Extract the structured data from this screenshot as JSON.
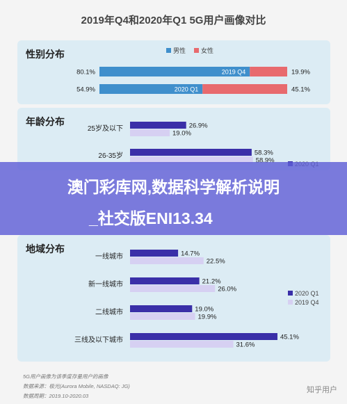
{
  "title": "2019年Q4和2020年Q1 5G用户画像对比",
  "banner": {
    "line1": "澳门彩库网,数据科学解析说明",
    "line2": "_社交版ENI13.34"
  },
  "footer": {
    "line1": "5G用户画像为该季度存量用户的画像",
    "line2": "数据来源：极光(Aurora Mobile, NASDAQ: JG)",
    "line3": "数据周期：2019.10-2020.03"
  },
  "watermark": "知乎用户",
  "colors": {
    "male": "#3f8fcc",
    "female": "#e86a6e",
    "q1_2020": "#3a2fa8",
    "q4_2019": "#d6d0f2"
  },
  "chart_data": [
    {
      "type": "bar",
      "title": "性别分布",
      "legend": [
        "男性",
        "女性"
      ],
      "categories": [
        "2019 Q4",
        "2020 Q1"
      ],
      "series": [
        {
          "name": "男性",
          "values": [
            80.1,
            54.9
          ]
        },
        {
          "name": "女性",
          "values": [
            19.9,
            45.1
          ]
        }
      ],
      "labels": {
        "male": [
          "80.1%",
          "54.9%"
        ],
        "female": [
          "19.9%",
          "45.1%"
        ]
      },
      "stacked": true
    },
    {
      "type": "bar",
      "title": "年龄分布",
      "categories": [
        "25岁及以下",
        "26-35岁"
      ],
      "legend": [
        "2020 Q1"
      ],
      "series": [
        {
          "name": "2020 Q1",
          "values": [
            26.9,
            58.3
          ]
        },
        {
          "name": "2019 Q4",
          "values": [
            19.0,
            58.9
          ]
        }
      ],
      "labels": {
        "q1": [
          "26.9%",
          "58.3%"
        ],
        "q4": [
          "19.0%",
          "58.9%"
        ]
      }
    },
    {
      "type": "bar",
      "title": "地域分布",
      "categories": [
        "一线城市",
        "新一线城市",
        "二线城市",
        "三线及以下城市"
      ],
      "legend": [
        "2020 Q1",
        "2019 Q4"
      ],
      "series": [
        {
          "name": "2020 Q1",
          "values": [
            14.7,
            21.2,
            19.0,
            45.1
          ]
        },
        {
          "name": "2019 Q4",
          "values": [
            22.5,
            26.0,
            19.9,
            31.6
          ]
        }
      ],
      "labels": {
        "q1": [
          "14.7%",
          "21.2%",
          "19.0%",
          "45.1%"
        ],
        "q4": [
          "22.5%",
          "26.0%",
          "19.9%",
          "31.6%"
        ]
      }
    }
  ]
}
